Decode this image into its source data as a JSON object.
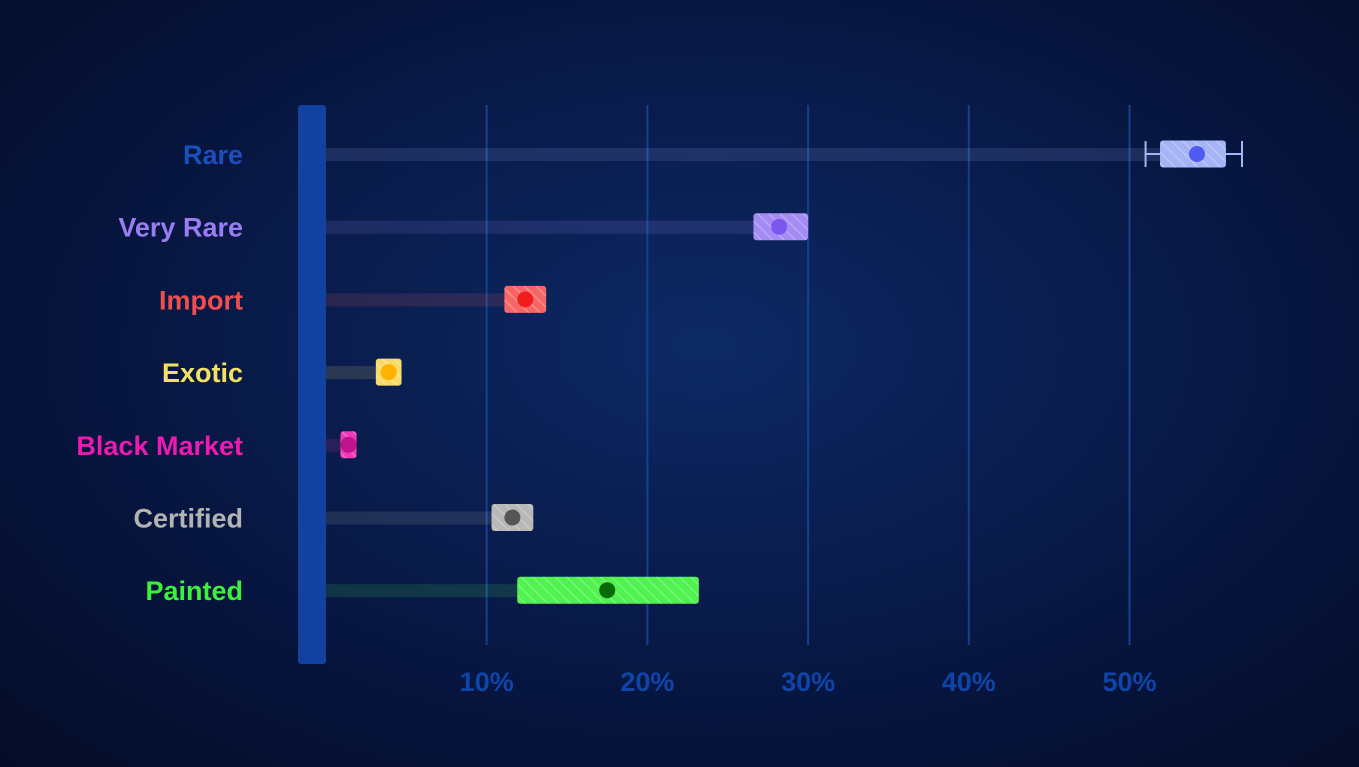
{
  "chart_data": {
    "type": "box",
    "categories": [
      "Rare",
      "Very Rare",
      "Import",
      "Exotic",
      "Black Market",
      "Certified",
      "Painted"
    ],
    "series": [
      {
        "category": "Rare",
        "color": "#1a4fbd",
        "box_color": "#a6b4f5",
        "dot_color": "#4d5bf0",
        "box": [
          51.9,
          56.0
        ],
        "median": 54.2,
        "whiskers": [
          51.0,
          57.0
        ]
      },
      {
        "category": "Very Rare",
        "color": "#9a7df2",
        "box_color": "#a58cf5",
        "dot_color": "#7c55ee",
        "box": [
          26.6,
          30.0
        ],
        "median": 28.2
      },
      {
        "category": "Import",
        "color": "#f04d4d",
        "box_color": "#f56666",
        "dot_color": "#f21e1e",
        "box": [
          11.1,
          13.7
        ],
        "median": 12.4
      },
      {
        "category": "Exotic",
        "color": "#f4e063",
        "box_color": "#f7db6a",
        "dot_color": "#ffb000",
        "box": [
          3.1,
          4.7
        ],
        "median": 3.9
      },
      {
        "category": "Black Market",
        "color": "#ee1ab0",
        "box_color": "#ee3ab8",
        "dot_color": "#c0148e",
        "box": [
          0.9,
          1.9
        ],
        "median": 1.4
      },
      {
        "category": "Certified",
        "color": "#b3b3b3",
        "box_color": "#b8b8b8",
        "dot_color": "#555555",
        "box": [
          10.3,
          12.9
        ],
        "median": 11.6
      },
      {
        "category": "Painted",
        "color": "#3df03d",
        "box_color": "#4ff24f",
        "dot_color": "#0a6a0a",
        "box": [
          11.9,
          23.2
        ],
        "median": 17.5
      }
    ],
    "x_ticks": [
      "10%",
      "20%",
      "30%",
      "40%",
      "50%"
    ],
    "x_tick_values": [
      10,
      20,
      30,
      40,
      50
    ],
    "xlim": [
      0,
      60
    ],
    "grid": true,
    "title": "",
    "xlabel": "",
    "ylabel": ""
  }
}
